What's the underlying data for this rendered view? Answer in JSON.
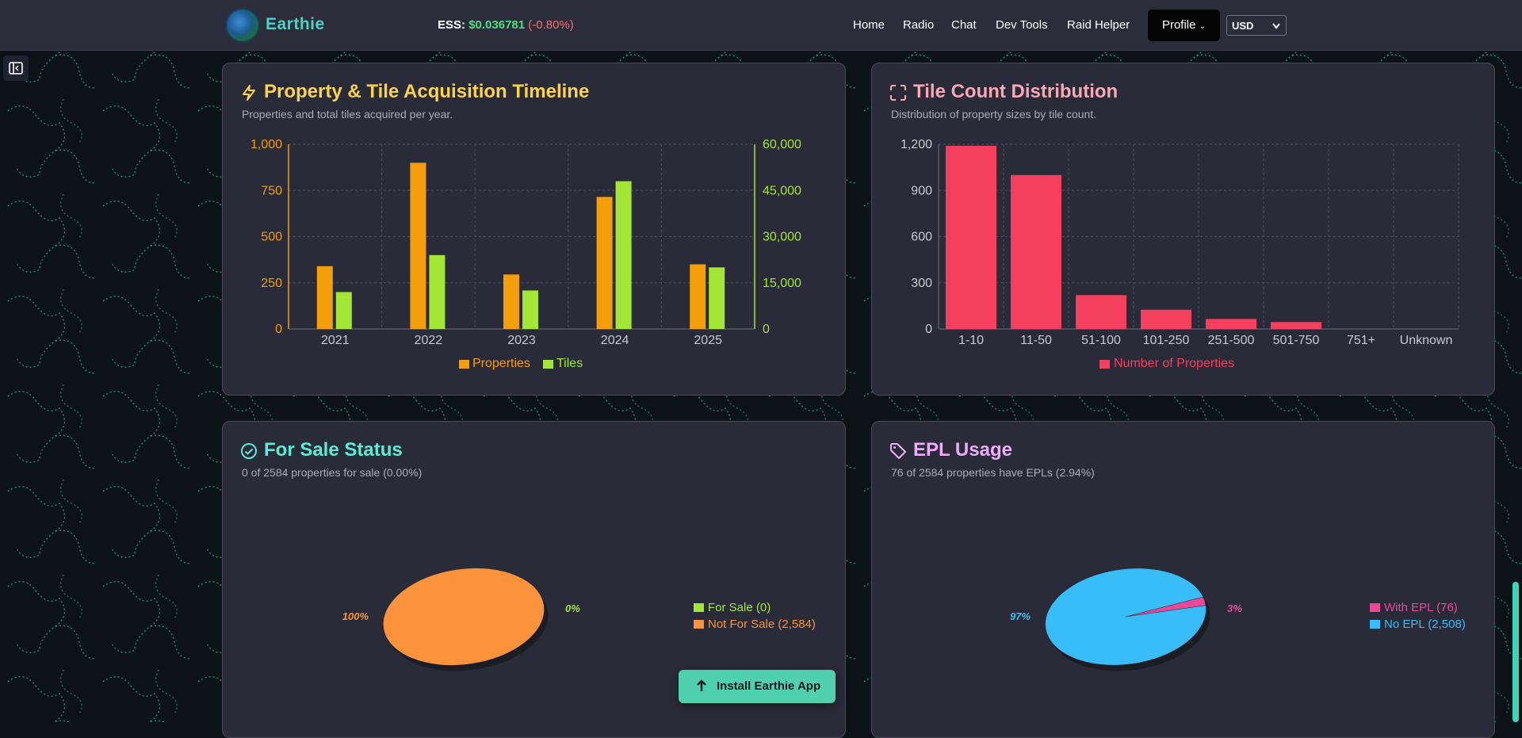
{
  "header": {
    "brand": "Earthie",
    "ess_label": "ESS:",
    "ess_price": "$0.036781",
    "ess_change": "(-0.80%)",
    "nav": [
      "Home",
      "Radio",
      "Chat",
      "Dev Tools",
      "Raid Helper"
    ],
    "profile_label": "Profile",
    "currency": "USD"
  },
  "cards": {
    "timeline": {
      "title": "Property & Tile Acquisition Timeline",
      "subtitle": "Properties and total tiles acquired per year.",
      "color": "#fcd34d"
    },
    "tilecount": {
      "title": "Tile Count Distribution",
      "subtitle": "Distribution of property sizes by tile count.",
      "color": "#f9a8b4"
    },
    "forsale": {
      "title": "For Sale Status",
      "subtitle": "0 of 2584 properties for sale (0.00%)",
      "color": "#5eead4"
    },
    "epl": {
      "title": "EPL Usage",
      "subtitle": "76 of 2584 properties have EPLs (2.94%)",
      "color": "#f0abfc"
    }
  },
  "install_button": "Install Earthie App",
  "chart_data": [
    {
      "type": "bar",
      "categories": [
        "2021",
        "2022",
        "2023",
        "2024",
        "2025"
      ],
      "series": [
        {
          "name": "Properties",
          "axis": "left",
          "color": "#f59e0b",
          "values": [
            340,
            900,
            295,
            715,
            350
          ]
        },
        {
          "name": "Tiles",
          "axis": "right",
          "color": "#a3e635",
          "values": [
            12000,
            24000,
            12500,
            48000,
            20000
          ]
        }
      ],
      "ylim_left": [
        0,
        1000
      ],
      "ylim_right": [
        0,
        60000
      ],
      "left_ticks": [
        "0",
        "250",
        "500",
        "750",
        "1,000"
      ],
      "right_ticks": [
        "0",
        "15,000",
        "30,000",
        "45,000",
        "60,000"
      ],
      "grid": true,
      "legend": "bottom"
    },
    {
      "type": "bar",
      "categories": [
        "1-10",
        "11-50",
        "51-100",
        "101-250",
        "251-500",
        "501-750",
        "751+",
        "Unknown"
      ],
      "series": [
        {
          "name": "Number of Properties",
          "color": "#f43f5e",
          "values": [
            1190,
            1000,
            220,
            125,
            65,
            45,
            0,
            0
          ]
        }
      ],
      "ylim": [
        0,
        1200
      ],
      "y_ticks": [
        "0",
        "300",
        "600",
        "900",
        "1,200"
      ],
      "grid": true,
      "legend": "bottom"
    },
    {
      "type": "pie",
      "slices": [
        {
          "label": "For Sale (0)",
          "value": 0,
          "color": "#a3e635",
          "pct_label": "0%"
        },
        {
          "label": "Not For Sale (2,584)",
          "value": 2584,
          "color": "#fb923c",
          "pct_label": "100%"
        }
      ],
      "legend": "right"
    },
    {
      "type": "pie",
      "slices": [
        {
          "label": "With EPL (76)",
          "value": 76,
          "color": "#ec4899",
          "pct_label": "3%"
        },
        {
          "label": "No EPL (2,508)",
          "value": 2508,
          "color": "#38bdf8",
          "pct_label": "97%"
        }
      ],
      "legend": "right"
    }
  ]
}
